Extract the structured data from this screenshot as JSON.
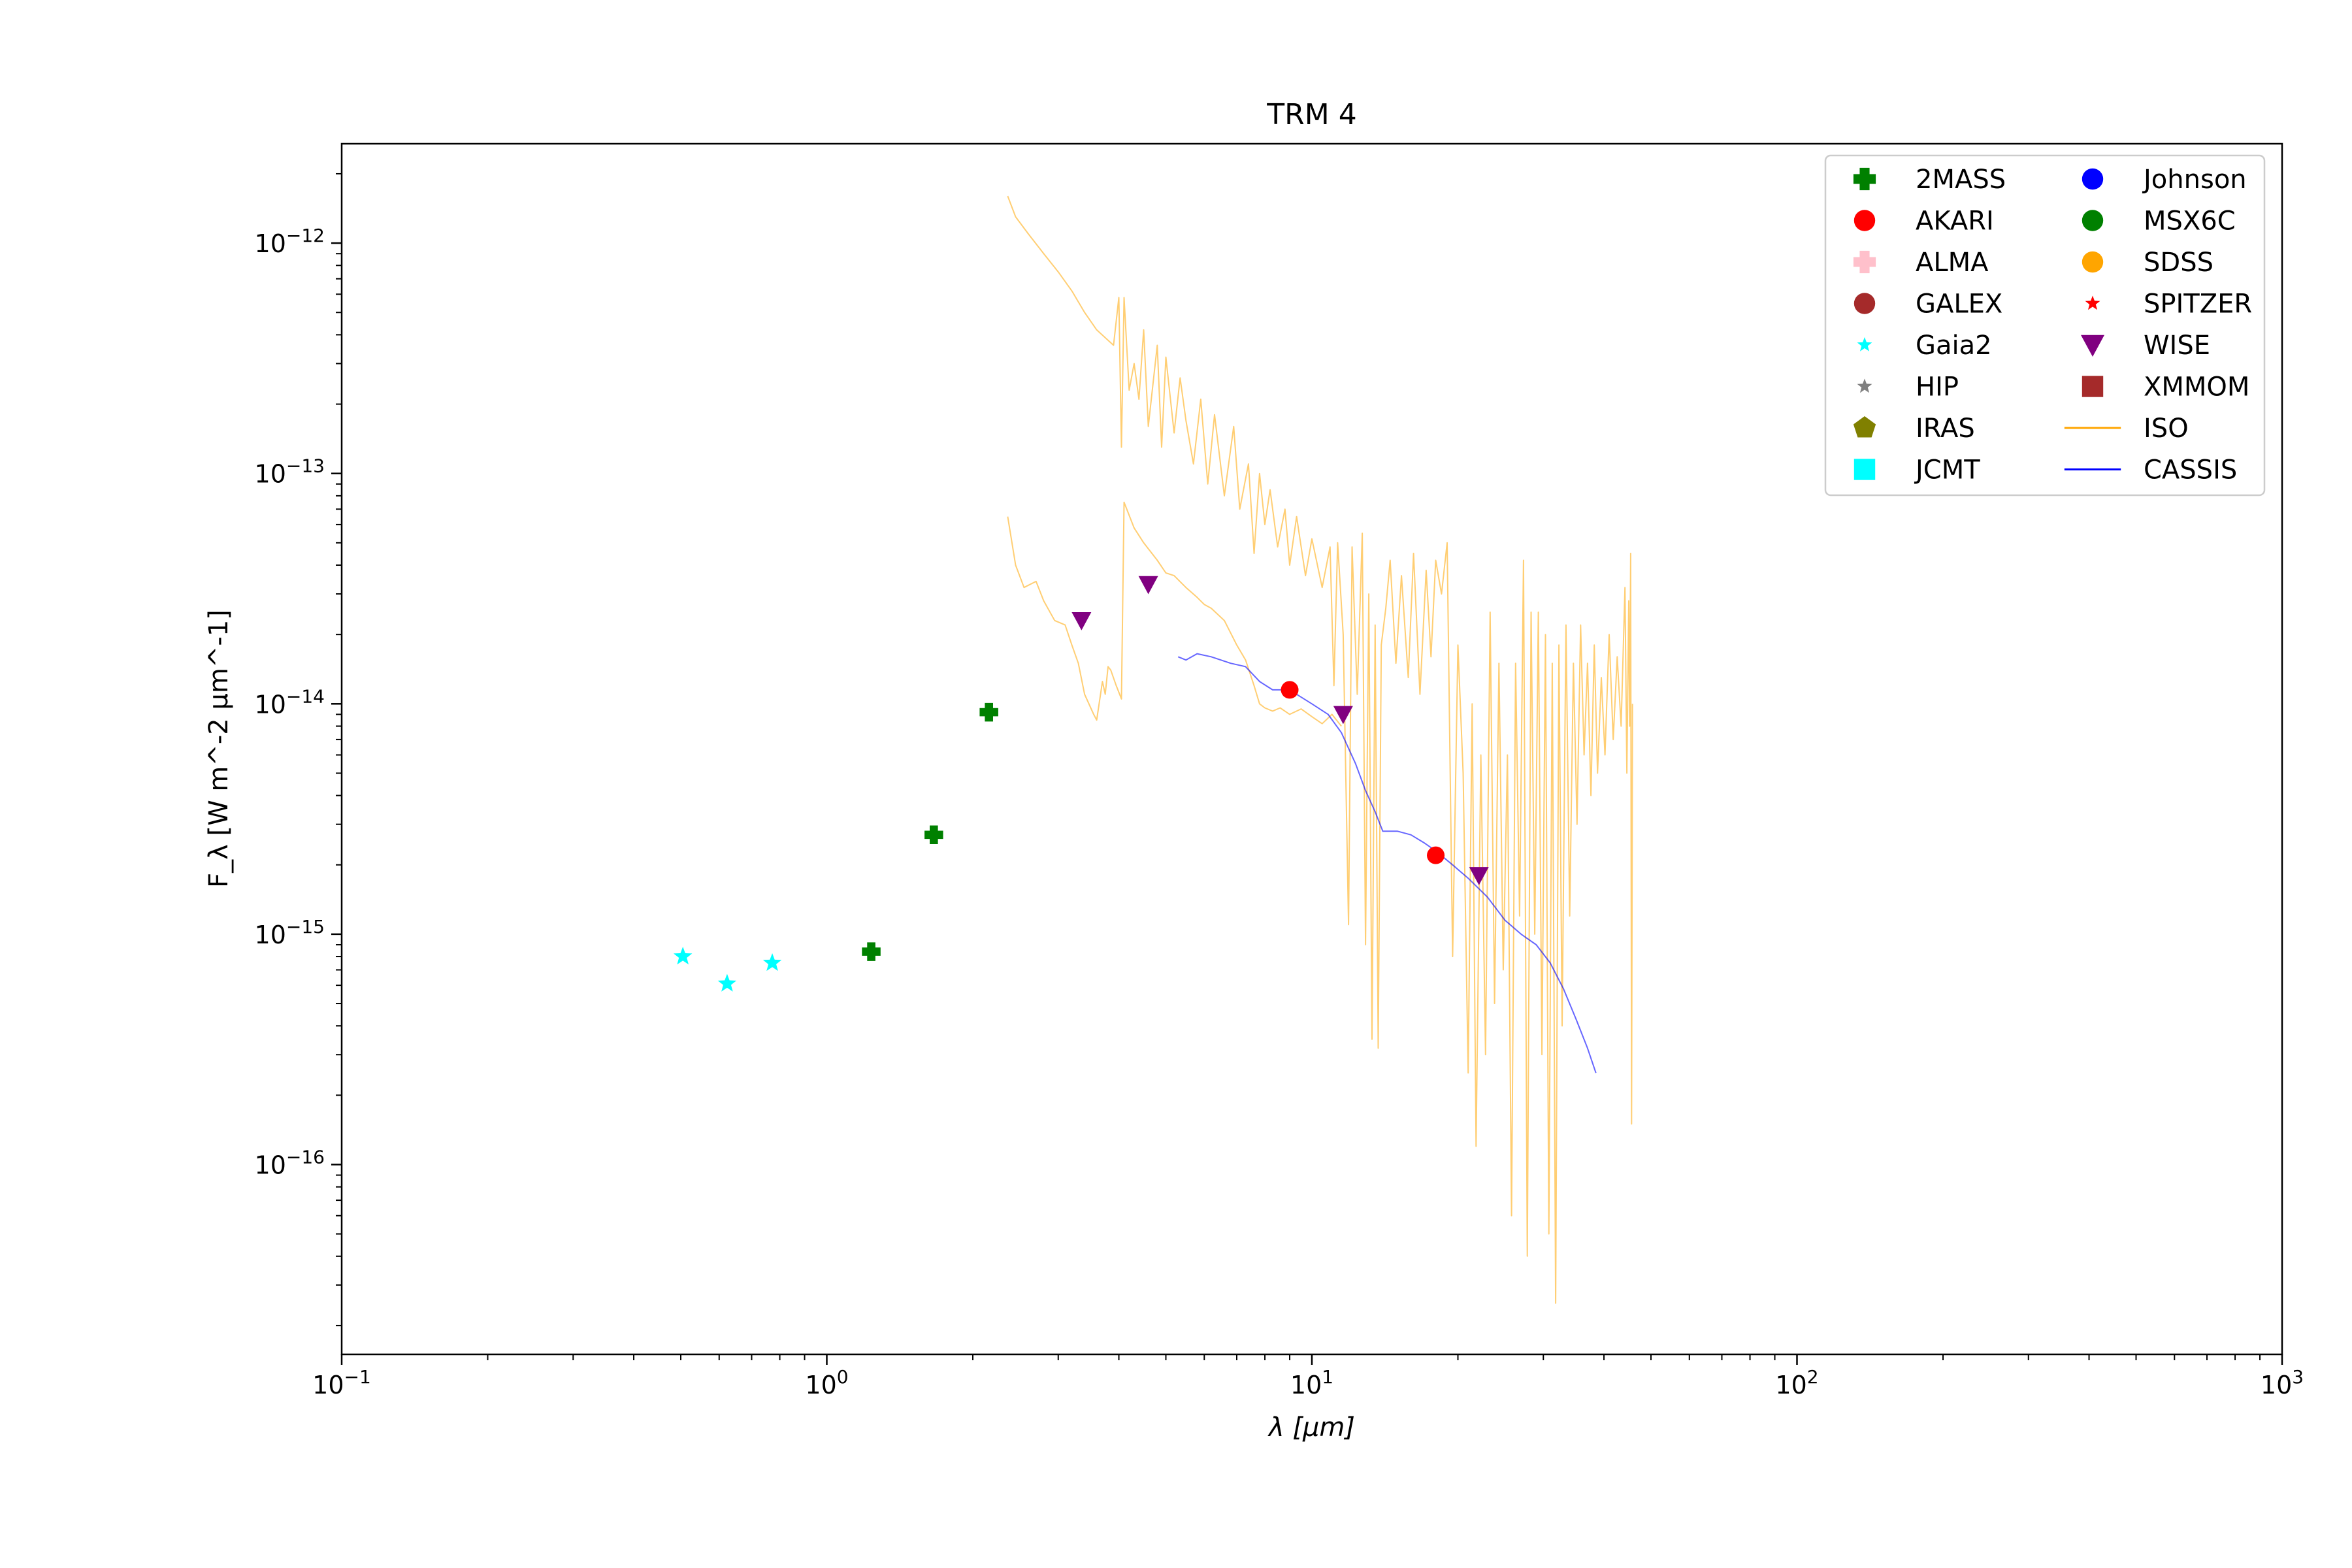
{
  "chart_data": {
    "type": "scatter",
    "title": "TRM 4",
    "xlabel": "λ [μm]",
    "ylabel": "F_λ [W m^-2 μm^-1]",
    "xscale": "log",
    "yscale": "log",
    "xlim": [
      0.1,
      1000
    ],
    "ylim": [
      1.5e-17,
      2.7e-12
    ],
    "x_ticks": [
      {
        "value": 0.1,
        "base": "10",
        "exp": "−1"
      },
      {
        "value": 1,
        "base": "10",
        "exp": "0"
      },
      {
        "value": 10,
        "base": "10",
        "exp": "1"
      },
      {
        "value": 100,
        "base": "10",
        "exp": "2"
      },
      {
        "value": 1000,
        "base": "10",
        "exp": "3"
      }
    ],
    "y_ticks": [
      {
        "value": 1e-16,
        "base": "10",
        "exp": "−16"
      },
      {
        "value": 1e-15,
        "base": "10",
        "exp": "−15"
      },
      {
        "value": 1e-14,
        "base": "10",
        "exp": "−14"
      },
      {
        "value": 1e-13,
        "base": "10",
        "exp": "−13"
      },
      {
        "value": 1e-12,
        "base": "10",
        "exp": "−12"
      }
    ],
    "grid": false,
    "legend_position": "top-right",
    "legend": [
      {
        "label": "2MASS",
        "marker": "plus",
        "color": "#008000"
      },
      {
        "label": "AKARI",
        "marker": "circle",
        "color": "#ff0000"
      },
      {
        "label": "ALMA",
        "marker": "plus",
        "color": "#ffc0cb"
      },
      {
        "label": "GALEX",
        "marker": "circle",
        "color": "#a52a2a"
      },
      {
        "label": "Gaia2",
        "marker": "star",
        "color": "#00ffff"
      },
      {
        "label": "HIP",
        "marker": "star",
        "color": "#808080"
      },
      {
        "label": "IRAS",
        "marker": "pentagon",
        "color": "#808000"
      },
      {
        "label": "JCMT",
        "marker": "square",
        "color": "#00ffff"
      },
      {
        "label": "Johnson",
        "marker": "circle",
        "color": "#0000ff"
      },
      {
        "label": "MSX6C",
        "marker": "circle",
        "color": "#008000"
      },
      {
        "label": "SDSS",
        "marker": "circle",
        "color": "#ffa500"
      },
      {
        "label": "SPITZER",
        "marker": "star",
        "color": "#ff0000"
      },
      {
        "label": "WISE",
        "marker": "triangle-down",
        "color": "#800080"
      },
      {
        "label": "XMMOM",
        "marker": "square",
        "color": "#a52a2a"
      },
      {
        "label": "ISO",
        "marker": "line",
        "color": "#ffa500"
      },
      {
        "label": "CASSIS",
        "marker": "line",
        "color": "#0000ff"
      }
    ],
    "series": [
      {
        "name": "2MASS",
        "marker": "plus",
        "color": "#008000",
        "points": [
          [
            1.235,
            8.4e-16
          ],
          [
            1.662,
            2.7e-15
          ],
          [
            2.159,
            9.2e-15
          ]
        ]
      },
      {
        "name": "Gaia2",
        "marker": "star",
        "color": "#00ffff",
        "points": [
          [
            0.505,
            8e-16
          ],
          [
            0.623,
            6.1e-16
          ],
          [
            0.772,
            7.5e-16
          ]
        ]
      },
      {
        "name": "WISE",
        "marker": "triangle-down",
        "color": "#800080",
        "points": [
          [
            3.35,
            2.3e-14
          ],
          [
            4.6,
            3.3e-14
          ],
          [
            11.6,
            9e-15
          ],
          [
            22.1,
            1.8e-15
          ]
        ]
      },
      {
        "name": "AKARI",
        "marker": "circle",
        "color": "#ff0000",
        "points": [
          [
            9.0,
            1.15e-14
          ],
          [
            18.0,
            2.2e-15
          ]
        ]
      },
      {
        "name": "CASSIS",
        "marker": "line",
        "color": "#0000ff",
        "points": [
          [
            5.3,
            1.6e-14
          ],
          [
            5.5,
            1.55e-14
          ],
          [
            5.8,
            1.65e-14
          ],
          [
            6.2,
            1.6e-14
          ],
          [
            6.8,
            1.5e-14
          ],
          [
            7.3,
            1.45e-14
          ],
          [
            7.8,
            1.25e-14
          ],
          [
            8.3,
            1.15e-14
          ],
          [
            8.8,
            1.15e-14
          ],
          [
            9.3,
            1.1e-14
          ],
          [
            10.0,
            1e-14
          ],
          [
            10.8,
            9e-15
          ],
          [
            11.5,
            7.5e-15
          ],
          [
            12.3,
            5.5e-15
          ],
          [
            12.9,
            4.2e-15
          ],
          [
            13.5,
            3.4e-15
          ],
          [
            14.0,
            2.8e-15
          ],
          [
            15.0,
            2.8e-15
          ],
          [
            16.0,
            2.7e-15
          ],
          [
            17.0,
            2.5e-15
          ],
          [
            18.0,
            2.3e-15
          ],
          [
            19.5,
            2e-15
          ],
          [
            21.0,
            1.75e-15
          ],
          [
            23.0,
            1.45e-15
          ],
          [
            25.0,
            1.15e-15
          ],
          [
            27.0,
            1e-15
          ],
          [
            29.0,
            9e-16
          ],
          [
            31.0,
            7.5e-16
          ],
          [
            33.0,
            5.8e-16
          ],
          [
            35.0,
            4.3e-16
          ],
          [
            37.0,
            3.2e-16
          ],
          [
            38.5,
            2.5e-16
          ]
        ]
      },
      {
        "name": "ISO",
        "marker": "line",
        "color": "#ffa500",
        "segments": [
          [
            [
              2.36,
              6.5e-14
            ],
            [
              2.45,
              4e-14
            ],
            [
              2.55,
              3.2e-14
            ],
            [
              2.7,
              3.4e-14
            ],
            [
              2.8,
              2.8e-14
            ],
            [
              2.95,
              2.3e-14
            ],
            [
              3.1,
              2.2e-14
            ],
            [
              3.2,
              1.8e-14
            ],
            [
              3.3,
              1.5e-14
            ],
            [
              3.4,
              1.1e-14
            ],
            [
              3.55,
              9e-15
            ],
            [
              3.6,
              8.5e-15
            ],
            [
              3.7,
              1.25e-14
            ],
            [
              3.75,
              1.1e-14
            ],
            [
              3.8,
              1.45e-14
            ],
            [
              3.85,
              1.4e-14
            ],
            [
              3.95,
              1.2e-14
            ],
            [
              4.05,
              1.05e-14
            ],
            [
              4.1,
              7.5e-14
            ],
            [
              4.3,
              5.8e-14
            ],
            [
              4.5,
              5e-14
            ],
            [
              4.8,
              4.2e-14
            ],
            [
              5.0,
              3.7e-14
            ],
            [
              5.2,
              3.6e-14
            ],
            [
              5.5,
              3.2e-14
            ],
            [
              5.8,
              2.9e-14
            ],
            [
              6.0,
              2.7e-14
            ],
            [
              6.2,
              2.6e-14
            ],
            [
              6.6,
              2.3e-14
            ],
            [
              7.0,
              1.8e-14
            ],
            [
              7.3,
              1.55e-14
            ],
            [
              7.6,
              1.2e-14
            ],
            [
              7.8,
              1e-14
            ],
            [
              8.0,
              9.6e-15
            ],
            [
              8.3,
              9.3e-15
            ],
            [
              8.6,
              9.6e-15
            ],
            [
              9.0,
              9e-15
            ],
            [
              9.5,
              9.5e-15
            ],
            [
              10.0,
              8.8e-15
            ],
            [
              10.5,
              8.2e-15
            ],
            [
              11.0,
              9e-15
            ],
            [
              11.5,
              8e-15
            ]
          ],
          [
            [
              2.36,
              1.6e-12
            ],
            [
              2.45,
              1.3e-12
            ],
            [
              2.6,
              1.1e-12
            ],
            [
              2.8,
              9e-13
            ],
            [
              3.0,
              7.5e-13
            ],
            [
              3.2,
              6.2e-13
            ],
            [
              3.4,
              5e-13
            ],
            [
              3.6,
              4.2e-13
            ],
            [
              3.9,
              3.6e-13
            ],
            [
              4.0,
              5.8e-13
            ],
            [
              4.05,
              1.3e-13
            ],
            [
              4.1,
              5.8e-13
            ],
            [
              4.2,
              2.3e-13
            ],
            [
              4.3,
              3e-13
            ],
            [
              4.4,
              2.1e-13
            ],
            [
              4.5,
              4.2e-13
            ],
            [
              4.6,
              1.6e-13
            ],
            [
              4.8,
              3.6e-13
            ],
            [
              4.9,
              1.3e-13
            ],
            [
              5.0,
              3.2e-13
            ],
            [
              5.2,
              1.5e-13
            ],
            [
              5.35,
              2.6e-13
            ],
            [
              5.5,
              1.7e-13
            ],
            [
              5.7,
              1.1e-13
            ],
            [
              5.9,
              2.1e-13
            ],
            [
              6.1,
              9e-14
            ],
            [
              6.3,
              1.8e-13
            ],
            [
              6.6,
              8e-14
            ],
            [
              6.9,
              1.6e-13
            ],
            [
              7.1,
              7e-14
            ],
            [
              7.4,
              1.1e-13
            ],
            [
              7.6,
              4.5e-14
            ],
            [
              7.8,
              1e-13
            ],
            [
              8.0,
              6e-14
            ],
            [
              8.2,
              8.5e-14
            ],
            [
              8.5,
              4.8e-14
            ],
            [
              8.8,
              7e-14
            ],
            [
              9.0,
              4e-14
            ],
            [
              9.3,
              6.5e-14
            ],
            [
              9.7,
              3.6e-14
            ],
            [
              10.0,
              5.2e-14
            ],
            [
              10.5,
              3.2e-14
            ],
            [
              10.9,
              4.8e-14
            ],
            [
              11.1,
              1.2e-14
            ],
            [
              11.3,
              5e-14
            ],
            [
              11.6,
              2e-14
            ],
            [
              11.9,
              1.1e-15
            ],
            [
              12.1,
              4.8e-14
            ],
            [
              12.4,
              1.1e-14
            ],
            [
              12.7,
              5.5e-14
            ],
            [
              12.9,
              9e-16
            ],
            [
              13.1,
              3e-14
            ],
            [
              13.3,
              3.5e-16
            ],
            [
              13.5,
              2.2e-14
            ],
            [
              13.7,
              3.2e-16
            ],
            [
              13.9,
              1.8e-14
            ],
            [
              14.2,
              2.6e-14
            ],
            [
              14.5,
              4.2e-14
            ],
            [
              14.9,
              1.5e-14
            ],
            [
              15.3,
              3.6e-14
            ],
            [
              15.8,
              1.3e-14
            ],
            [
              16.2,
              4.5e-14
            ],
            [
              16.7,
              1.1e-14
            ],
            [
              17.2,
              3.8e-14
            ],
            [
              17.6,
              1.6e-14
            ],
            [
              18.0,
              4.2e-14
            ],
            [
              18.5,
              3e-14
            ],
            [
              19.0,
              5e-14
            ],
            [
              19.5,
              8e-16
            ],
            [
              20.0,
              1.8e-14
            ],
            [
              20.5,
              5e-15
            ],
            [
              21.0,
              2.5e-16
            ],
            [
              21.4,
              1e-14
            ],
            [
              21.8,
              1.2e-16
            ],
            [
              22.3,
              6e-15
            ],
            [
              22.8,
              3e-16
            ],
            [
              23.3,
              2.5e-14
            ],
            [
              23.8,
              5e-16
            ],
            [
              24.3,
              1.5e-14
            ],
            [
              24.8,
              7e-16
            ],
            [
              25.3,
              6e-15
            ],
            [
              25.8,
              6e-17
            ],
            [
              26.3,
              1.5e-14
            ],
            [
              26.8,
              1.2e-15
            ],
            [
              27.3,
              4.2e-14
            ],
            [
              27.8,
              4e-17
            ],
            [
              28.3,
              2.5e-14
            ],
            [
              28.8,
              1e-15
            ],
            [
              29.3,
              2.5e-14
            ],
            [
              29.8,
              3e-16
            ],
            [
              30.3,
              2e-14
            ],
            [
              30.8,
              5e-17
            ],
            [
              31.3,
              1.5e-14
            ],
            [
              31.8,
              2.5e-17
            ],
            [
              32.3,
              1.8e-14
            ],
            [
              32.8,
              4e-16
            ],
            [
              33.4,
              2.2e-14
            ],
            [
              34.0,
              1.2e-15
            ],
            [
              34.6,
              1.5e-14
            ],
            [
              35.2,
              3e-15
            ],
            [
              35.8,
              2.2e-14
            ],
            [
              36.4,
              6e-15
            ],
            [
              37.0,
              1.5e-14
            ],
            [
              37.6,
              4e-15
            ],
            [
              38.2,
              1.8e-14
            ],
            [
              38.8,
              5e-15
            ],
            [
              39.5,
              1.3e-14
            ],
            [
              40.2,
              6e-15
            ],
            [
              41.0,
              2e-14
            ],
            [
              41.8,
              7e-15
            ],
            [
              42.6,
              1.6e-14
            ],
            [
              43.4,
              8e-15
            ],
            [
              44.2,
              3.2e-14
            ],
            [
              44.6,
              5e-15
            ],
            [
              45.0,
              2.8e-14
            ],
            [
              45.2,
              8e-15
            ],
            [
              45.4,
              4.5e-14
            ],
            [
              45.6,
              1.5e-16
            ],
            [
              45.8,
              1e-14
            ]
          ]
        ]
      }
    ]
  }
}
